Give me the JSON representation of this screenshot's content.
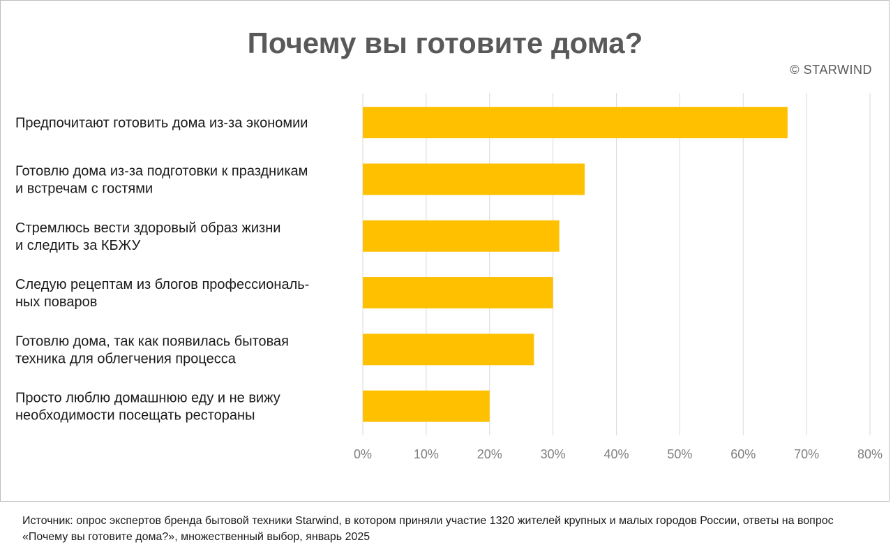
{
  "credit": "© STARWIND",
  "source_note": "Источник: опрос экспертов бренда бытовой техники Starwind, в котором приняли участие 1320 жителей крупных и малых городов России, ответы на вопрос «Почему вы готовите дома?», множественный выбор, январь 2025",
  "chart_data": {
    "type": "bar",
    "orientation": "horizontal",
    "title": "Почему вы готовите дома?",
    "xlabel": "",
    "ylabel": "",
    "categories": [
      [
        "Предпочитают готовить дома из-за экономии"
      ],
      [
        "Готовлю дома из-за подготовки к праздникам",
        "и встречам с гостями"
      ],
      [
        "Стремлюсь вести здоровый образ жизни",
        "и следить за КБЖУ"
      ],
      [
        "Следую рецептам из блогов профессиональ-",
        "ных поваров"
      ],
      [
        "Готовлю дома, так как появилась бытовая",
        "техника для облегчения процесса"
      ],
      [
        "Просто люблю домашнюю еду и не вижу",
        "необходимости посещать рестораны"
      ]
    ],
    "values": [
      67,
      35,
      31,
      30,
      27,
      20
    ],
    "xlim": [
      0,
      80
    ],
    "ticks": [
      0,
      10,
      20,
      30,
      40,
      50,
      60,
      70,
      80
    ],
    "tick_labels": [
      "0%",
      "10%",
      "20%",
      "30%",
      "40%",
      "50%",
      "60%",
      "70%",
      "80%"
    ],
    "grid": "vertical",
    "legend": "none",
    "bar_color": "#ffc000"
  }
}
